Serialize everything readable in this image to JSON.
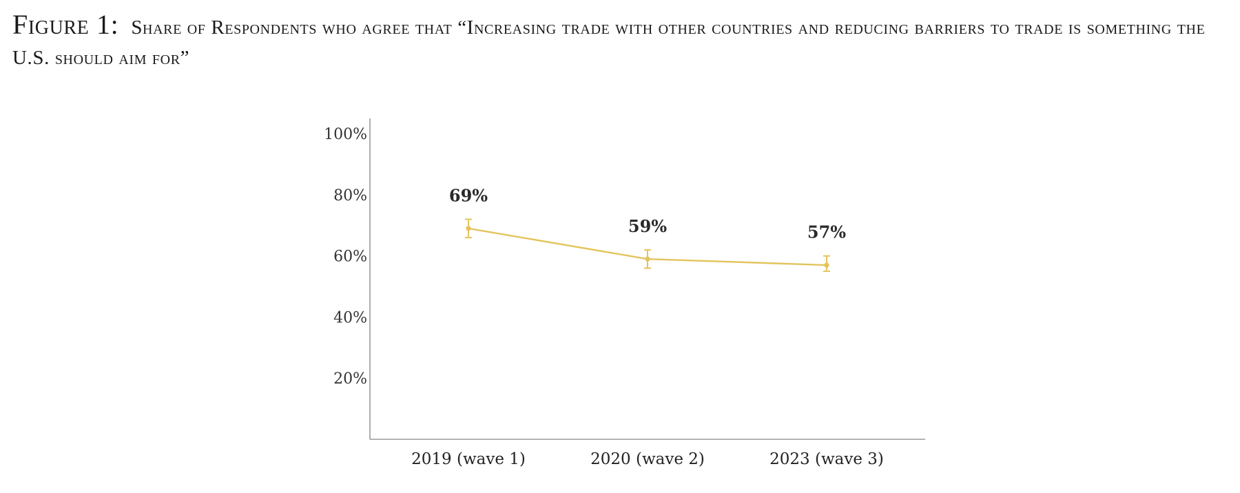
{
  "figure": {
    "label": "Figure 1:",
    "caption": "Share of Respondents who agree that “Increasing trade with other countries and reducing barriers to trade is something the U.S. should aim for”"
  },
  "colors": {
    "series": "#e3c45c",
    "axis": "#9a9a9a",
    "text": "#333333"
  },
  "chart_data": {
    "type": "line",
    "title": "Share of Respondents who agree that “Increasing trade with other countries and reducing barriers to trade is something the U.S. should aim for”",
    "categories": [
      "2019 (wave 1)",
      "2020 (wave 2)",
      "2023 (wave 3)"
    ],
    "series": [
      {
        "name": "Agree",
        "values": [
          69,
          59,
          57
        ],
        "data_labels": [
          "69%",
          "59%",
          "57%"
        ],
        "error_low": [
          66,
          56,
          55
        ],
        "error_high": [
          72,
          62,
          60
        ]
      }
    ],
    "yticks": [
      20,
      40,
      60,
      80,
      100
    ],
    "ytick_labels": [
      "20%",
      "40%",
      "60%",
      "80%",
      "100%"
    ],
    "ylim": [
      0,
      105
    ],
    "xlabel": "",
    "ylabel": "",
    "grid": false,
    "legend": "none"
  }
}
